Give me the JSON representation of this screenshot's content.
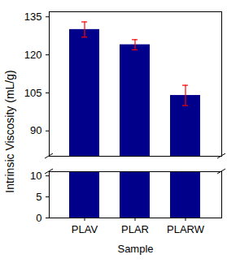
{
  "chart_data": {
    "type": "bar",
    "categories": [
      "PLAV",
      "PLAR",
      "PLARW"
    ],
    "values": [
      130,
      124,
      104
    ],
    "errors": [
      3,
      2,
      4
    ],
    "color": "#00008B",
    "x_label": "Sample",
    "y_label": "Intrinsic Viscosity (mL/g)",
    "ylim": [
      0,
      137
    ],
    "y_break": [
      11,
      80
    ],
    "yticks": [
      0,
      5,
      10,
      90,
      105,
      120,
      135
    ],
    "grid": false
  }
}
